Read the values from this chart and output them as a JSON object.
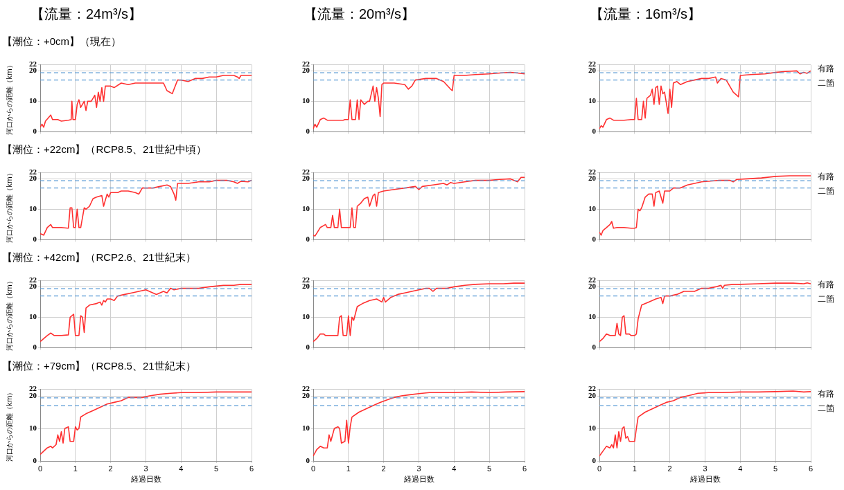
{
  "chart_data": [
    {
      "type": "line",
      "title": "【流量：24m³/s】",
      "subtitle": "【潮位：+0cm】（現在）",
      "ylabel": "河口からの距離（km）",
      "xlim": [
        0,
        6
      ],
      "xticks": [
        0,
        1,
        2,
        3,
        4,
        5,
        6
      ],
      "ylim": [
        0,
        22
      ],
      "yticks": [
        0,
        10,
        20,
        22
      ],
      "grid": true,
      "tick_labels": "y",
      "ref_lines": [
        {
          "axis": "y",
          "value": 19.4,
          "color": "#5b9bd5",
          "line_style": "dashed"
        },
        {
          "axis": "y",
          "value": 17,
          "color": "#5b9bd5",
          "line_style": "dashed"
        }
      ],
      "series": [
        {
          "color": "#ff3030",
          "x": [
            0,
            0.05,
            0.1,
            0.15,
            0.3,
            0.35,
            0.5,
            0.6,
            0.8,
            0.88,
            0.9,
            0.93,
            1.0,
            1.05,
            1.1,
            1.15,
            1.25,
            1.3,
            1.35,
            1.45,
            1.55,
            1.6,
            1.65,
            1.7,
            1.75,
            1.8,
            1.85,
            2.0,
            2.1,
            2.3,
            2.5,
            2.7,
            3.0,
            3.3,
            3.5,
            3.6,
            3.75,
            3.8,
            3.9,
            4.0,
            4.2,
            4.4,
            4.6,
            4.8,
            5.0,
            5.2,
            5.5,
            5.6,
            5.65,
            5.7,
            6.0
          ],
          "values": [
            1.5,
            2.5,
            1.5,
            3.5,
            5.5,
            4,
            4,
            3.5,
            3.8,
            4,
            10,
            4,
            4,
            9,
            10.5,
            8,
            10,
            7,
            10,
            10,
            12,
            8,
            13,
            10,
            14.5,
            10,
            15,
            15,
            14.5,
            16,
            15.5,
            16,
            16,
            16,
            16,
            13.5,
            12.5,
            14,
            17,
            17,
            16.5,
            17.5,
            17.5,
            18,
            18,
            18.5,
            18.5,
            18,
            17.5,
            18.5,
            18.5
          ]
        }
      ]
    },
    {
      "type": "line",
      "title": "【流量：20m³/s】",
      "xlim": [
        0,
        6
      ],
      "xticks": [
        0,
        1,
        2,
        3,
        4,
        5,
        6
      ],
      "ylim": [
        0,
        22
      ],
      "yticks": [
        0,
        10,
        20,
        22
      ],
      "grid": true,
      "tick_labels": "y",
      "ref_lines": [
        {
          "axis": "y",
          "value": 19.4,
          "color": "#5b9bd5",
          "line_style": "dashed"
        },
        {
          "axis": "y",
          "value": 17,
          "color": "#5b9bd5",
          "line_style": "dashed"
        }
      ],
      "series": [
        {
          "color": "#ff3030",
          "x": [
            0,
            0.05,
            0.1,
            0.2,
            0.3,
            0.4,
            0.7,
            0.85,
            0.9,
            1.0,
            1.05,
            1.1,
            1.2,
            1.25,
            1.3,
            1.35,
            1.45,
            1.55,
            1.6,
            1.7,
            1.75,
            1.8,
            1.85,
            1.9,
            1.95,
            2.0,
            2.3,
            2.6,
            2.7,
            2.8,
            2.9,
            3.2,
            3.5,
            3.7,
            3.9,
            3.95,
            4.0,
            4.3,
            4.6,
            5.0,
            5.3,
            5.6,
            5.8,
            6.0
          ],
          "values": [
            1,
            2.5,
            1.5,
            4,
            4.5,
            3.8,
            3.8,
            3.8,
            4,
            4,
            10.5,
            4,
            4,
            10.5,
            4,
            10.5,
            9,
            10,
            10,
            15,
            10,
            14.5,
            11,
            5,
            15.5,
            16,
            16,
            15.5,
            14,
            15,
            17,
            17.5,
            17.5,
            16.5,
            14,
            13.5,
            18.5,
            18.5,
            18.8,
            19,
            19.3,
            19.5,
            19.3,
            19
          ]
        }
      ]
    },
    {
      "type": "line",
      "title": "【流量：16m³/s】",
      "xlim": [
        0,
        6
      ],
      "xticks": [
        0,
        1,
        2,
        3,
        4,
        5,
        6
      ],
      "ylim": [
        0,
        22
      ],
      "yticks": [
        0,
        10,
        20,
        22
      ],
      "grid": true,
      "tick_labels": "y",
      "ref_lines": [
        {
          "axis": "y",
          "value": 19.4,
          "label": "有路",
          "color": "#5b9bd5",
          "line_style": "dashed"
        },
        {
          "axis": "y",
          "value": 17,
          "label": "二箇",
          "color": "#5b9bd5",
          "line_style": "dashed"
        }
      ],
      "series": [
        {
          "color": "#ff3030",
          "x": [
            0,
            0.05,
            0.1,
            0.2,
            0.3,
            0.4,
            0.7,
            0.9,
            1.0,
            1.05,
            1.1,
            1.2,
            1.25,
            1.3,
            1.35,
            1.45,
            1.5,
            1.55,
            1.6,
            1.65,
            1.7,
            1.75,
            1.8,
            1.85,
            1.95,
            2.0,
            2.05,
            2.1,
            2.2,
            2.3,
            2.5,
            2.7,
            2.9,
            3.1,
            3.3,
            3.35,
            3.45,
            3.6,
            3.8,
            3.95,
            4.0,
            4.3,
            4.7,
            5.0,
            5.3,
            5.6,
            5.7,
            5.8,
            5.9,
            6.0
          ],
          "values": [
            1,
            2,
            1.5,
            4,
            4.5,
            3.8,
            3.8,
            4,
            4,
            11,
            4,
            4,
            10,
            4.5,
            11,
            12,
            14,
            9,
            14.5,
            15,
            9,
            15,
            12.5,
            13,
            6,
            14,
            8,
            16,
            16.5,
            15.5,
            16.5,
            17,
            17.5,
            17.5,
            18,
            16,
            17.5,
            17,
            13,
            11.5,
            18.5,
            18.8,
            19,
            19.5,
            19.8,
            20,
            19,
            19.5,
            19.2,
            20
          ]
        }
      ]
    },
    {
      "type": "line",
      "subtitle": "【潮位：+22cm】（RCP8.5、21世紀中頃）",
      "ylabel": "河口からの距離（km）",
      "xlim": [
        0,
        6
      ],
      "xticks": [
        0,
        1,
        2,
        3,
        4,
        5,
        6
      ],
      "ylim": [
        0,
        22
      ],
      "yticks": [
        0,
        10,
        20,
        22
      ],
      "grid": true,
      "tick_labels": "y",
      "ref_lines": [
        {
          "axis": "y",
          "value": 19.4,
          "color": "#5b9bd5",
          "line_style": "dashed"
        },
        {
          "axis": "y",
          "value": 17,
          "color": "#5b9bd5",
          "line_style": "dashed"
        }
      ],
      "series": [
        {
          "color": "#ff3030",
          "x": [
            0,
            0.1,
            0.2,
            0.3,
            0.35,
            0.6,
            0.8,
            0.85,
            0.9,
            0.95,
            1.0,
            1.05,
            1.1,
            1.15,
            1.25,
            1.3,
            1.4,
            1.5,
            1.6,
            1.75,
            1.8,
            1.9,
            1.95,
            2.0,
            2.2,
            2.3,
            2.5,
            2.7,
            2.8,
            2.9,
            3.2,
            3.4,
            3.6,
            3.7,
            3.8,
            3.85,
            3.9,
            4.2,
            4.5,
            4.8,
            5.0,
            5.3,
            5.5,
            5.6,
            5.7,
            5.9,
            6.0
          ],
          "values": [
            2,
            1.5,
            4,
            5,
            4,
            4,
            3.8,
            10.5,
            10.5,
            4,
            4,
            10,
            4,
            4,
            10.5,
            10,
            11,
            13.5,
            14,
            14.5,
            11,
            15,
            14,
            15.5,
            15.5,
            16,
            16,
            15.5,
            15,
            17,
            17,
            17.5,
            18,
            17.5,
            15,
            13,
            18.5,
            18.5,
            19,
            19,
            19.5,
            19.5,
            19,
            18.5,
            19.2,
            19,
            19.5
          ]
        }
      ]
    },
    {
      "type": "line",
      "xlim": [
        0,
        6
      ],
      "xticks": [
        0,
        1,
        2,
        3,
        4,
        5,
        6
      ],
      "ylim": [
        0,
        22
      ],
      "yticks": [
        0,
        10,
        20,
        22
      ],
      "grid": true,
      "tick_labels": "y",
      "ref_lines": [
        {
          "axis": "y",
          "value": 19.4,
          "color": "#5b9bd5",
          "line_style": "dashed"
        },
        {
          "axis": "y",
          "value": 17,
          "color": "#5b9bd5",
          "line_style": "dashed"
        }
      ],
      "series": [
        {
          "color": "#ff3030",
          "x": [
            0,
            0.05,
            0.2,
            0.35,
            0.4,
            0.5,
            0.55,
            0.6,
            0.7,
            0.75,
            0.8,
            0.9,
            1.05,
            1.1,
            1.15,
            1.2,
            1.25,
            1.35,
            1.45,
            1.55,
            1.6,
            1.7,
            1.75,
            1.8,
            1.85,
            2.0,
            2.3,
            2.6,
            2.9,
            3.0,
            3.1,
            3.4,
            3.7,
            3.8,
            3.9,
            4.0,
            4.3,
            4.6,
            5.0,
            5.3,
            5.6,
            5.8,
            5.9,
            6.0
          ],
          "values": [
            1.5,
            1.2,
            4,
            5,
            4,
            4,
            8,
            4,
            4,
            10,
            4,
            4,
            4,
            10.5,
            4,
            4,
            11,
            12,
            13.5,
            14,
            11,
            14.5,
            15,
            11,
            15.5,
            16,
            16.5,
            17,
            17.5,
            16.5,
            17.5,
            18,
            18.5,
            18,
            18.8,
            18.5,
            19,
            19.5,
            19.5,
            19.8,
            20,
            19,
            20.5,
            20.5
          ]
        }
      ]
    },
    {
      "type": "line",
      "xlim": [
        0,
        6
      ],
      "xticks": [
        0,
        1,
        2,
        3,
        4,
        5,
        6
      ],
      "ylim": [
        0,
        22
      ],
      "yticks": [
        0,
        10,
        20,
        22
      ],
      "grid": true,
      "tick_labels": "y",
      "ref_lines": [
        {
          "axis": "y",
          "value": 19.4,
          "label": "有路",
          "color": "#5b9bd5",
          "line_style": "dashed"
        },
        {
          "axis": "y",
          "value": 17,
          "label": "二箇",
          "color": "#5b9bd5",
          "line_style": "dashed"
        }
      ],
      "series": [
        {
          "color": "#ff3030",
          "x": [
            0,
            0.05,
            0.1,
            0.2,
            0.3,
            0.35,
            0.4,
            0.5,
            0.7,
            0.9,
            1.0,
            1.05,
            1.1,
            1.15,
            1.2,
            1.3,
            1.35,
            1.4,
            1.5,
            1.55,
            1.6,
            1.7,
            1.8,
            1.85,
            2.0,
            2.1,
            2.3,
            2.5,
            2.7,
            2.9,
            3.2,
            3.4,
            3.7,
            3.8,
            3.9,
            4.2,
            4.6,
            5.0,
            5.4,
            5.7,
            6.0
          ],
          "values": [
            2.5,
            1.5,
            3,
            4,
            5,
            6,
            3.8,
            4,
            4,
            3.8,
            3.8,
            4,
            10,
            9.5,
            10.5,
            14,
            14.5,
            15,
            15,
            11,
            15.5,
            16,
            12,
            16,
            16,
            17,
            17,
            18,
            18.5,
            19,
            19.3,
            19.5,
            19.5,
            19,
            19.8,
            20,
            20.3,
            20.8,
            21,
            21,
            21
          ]
        }
      ]
    },
    {
      "type": "line",
      "subtitle": "【潮位：+42cm】（RCP2.6、21世紀末）",
      "ylabel": "河口からの距離（km）",
      "xlim": [
        0,
        6
      ],
      "xticks": [
        0,
        1,
        2,
        3,
        4,
        5,
        6
      ],
      "ylim": [
        0,
        22
      ],
      "yticks": [
        0,
        10,
        20,
        22
      ],
      "grid": true,
      "tick_labels": "y",
      "ref_lines": [
        {
          "axis": "y",
          "value": 19.4,
          "color": "#5b9bd5",
          "line_style": "dashed"
        },
        {
          "axis": "y",
          "value": 17,
          "color": "#5b9bd5",
          "line_style": "dashed"
        }
      ],
      "series": [
        {
          "color": "#ff3030",
          "x": [
            0,
            0.2,
            0.3,
            0.4,
            0.6,
            0.8,
            0.85,
            0.95,
            1.0,
            1.1,
            1.15,
            1.2,
            1.25,
            1.3,
            1.4,
            1.6,
            1.7,
            1.75,
            1.8,
            1.85,
            1.9,
            2.0,
            2.1,
            2.2,
            2.4,
            2.6,
            2.8,
            3.0,
            3.1,
            3.3,
            3.4,
            3.5,
            3.6,
            3.7,
            3.8,
            4.0,
            4.3,
            4.5,
            4.8,
            5.2,
            5.5,
            5.7,
            6.0
          ],
          "values": [
            2,
            4,
            4.8,
            4,
            4,
            4.2,
            10,
            11,
            4,
            4,
            10.5,
            10,
            5,
            13,
            14,
            14.5,
            15,
            14,
            15.5,
            15,
            16,
            16,
            15.5,
            17,
            17.5,
            18,
            18.5,
            19,
            18.5,
            17.5,
            18,
            18.5,
            18,
            19.5,
            19,
            19.5,
            19.5,
            19.5,
            20,
            20.5,
            20.5,
            20.8,
            20.8
          ]
        }
      ]
    },
    {
      "type": "line",
      "xlim": [
        0,
        6
      ],
      "xticks": [
        0,
        1,
        2,
        3,
        4,
        5,
        6
      ],
      "ylim": [
        0,
        22
      ],
      "yticks": [
        0,
        10,
        20,
        22
      ],
      "grid": true,
      "tick_labels": "y",
      "ref_lines": [
        {
          "axis": "y",
          "value": 19.4,
          "color": "#5b9bd5",
          "line_style": "dashed"
        },
        {
          "axis": "y",
          "value": 17,
          "color": "#5b9bd5",
          "line_style": "dashed"
        }
      ],
      "series": [
        {
          "color": "#ff3030",
          "x": [
            0,
            0.1,
            0.2,
            0.3,
            0.35,
            0.6,
            0.7,
            0.75,
            0.8,
            0.85,
            0.95,
            1.0,
            1.05,
            1.1,
            1.15,
            1.25,
            1.4,
            1.6,
            1.8,
            1.95,
            2.0,
            2.05,
            2.2,
            2.4,
            2.6,
            2.8,
            3.0,
            3.2,
            3.3,
            3.4,
            3.5,
            3.7,
            3.8,
            4.0,
            4.3,
            4.6,
            5.0,
            5.4,
            5.7,
            6.0
          ],
          "values": [
            2,
            3,
            4.5,
            4.5,
            4,
            4,
            4,
            10,
            10.5,
            4,
            4,
            10.5,
            4,
            10,
            9,
            13.5,
            14.5,
            15.5,
            16,
            15,
            16.5,
            15,
            16.5,
            17.5,
            18,
            18.5,
            19,
            19.5,
            19.5,
            18.5,
            19.5,
            19.5,
            19.5,
            20,
            20.5,
            20.8,
            21,
            21,
            21.2,
            21.2
          ]
        }
      ]
    },
    {
      "type": "line",
      "xlim": [
        0,
        6
      ],
      "xticks": [
        0,
        1,
        2,
        3,
        4,
        5,
        6
      ],
      "ylim": [
        0,
        22
      ],
      "yticks": [
        0,
        10,
        20,
        22
      ],
      "grid": true,
      "tick_labels": "y",
      "ref_lines": [
        {
          "axis": "y",
          "value": 19.4,
          "label": "有路",
          "color": "#5b9bd5",
          "line_style": "dashed"
        },
        {
          "axis": "y",
          "value": 17,
          "label": "二箇",
          "color": "#5b9bd5",
          "line_style": "dashed"
        }
      ],
      "series": [
        {
          "color": "#ff3030",
          "x": [
            0,
            0.1,
            0.2,
            0.3,
            0.45,
            0.5,
            0.55,
            0.6,
            0.65,
            0.7,
            0.75,
            0.85,
            0.9,
            1.0,
            1.05,
            1.1,
            1.2,
            1.4,
            1.6,
            1.75,
            1.8,
            1.85,
            2.0,
            2.2,
            2.4,
            2.7,
            2.9,
            3.1,
            3.3,
            3.45,
            3.5,
            3.55,
            3.8,
            4.0,
            4.5,
            5.0,
            5.5,
            5.8,
            5.9,
            6.0
          ],
          "values": [
            2,
            3,
            4.5,
            4,
            4,
            8,
            4.5,
            4,
            10,
            10.5,
            4.5,
            4.5,
            4,
            4,
            4.5,
            9.5,
            14,
            15,
            16,
            16.5,
            14.5,
            17,
            17,
            17.5,
            18.5,
            18.5,
            19.5,
            19.5,
            20,
            20.5,
            19.5,
            20.5,
            20.8,
            20.8,
            21,
            21.2,
            21.2,
            21,
            21.3,
            21
          ]
        }
      ]
    },
    {
      "type": "line",
      "subtitle": "【潮位：+79cm】（RCP8.5、21世紀末）",
      "ylabel": "河口からの距離（km）",
      "xlabel": "経過日数",
      "xlim": [
        0,
        6
      ],
      "xticks": [
        0,
        1,
        2,
        3,
        4,
        5,
        6
      ],
      "ylim": [
        0,
        22
      ],
      "yticks": [
        0,
        10,
        20,
        22
      ],
      "grid": true,
      "ref_lines": [
        {
          "axis": "y",
          "value": 19.4,
          "color": "#5b9bd5",
          "line_style": "dashed"
        },
        {
          "axis": "y",
          "value": 17,
          "color": "#5b9bd5",
          "line_style": "dashed"
        }
      ],
      "series": [
        {
          "color": "#ff3030",
          "x": [
            0,
            0.1,
            0.2,
            0.3,
            0.35,
            0.45,
            0.5,
            0.55,
            0.6,
            0.65,
            0.7,
            0.8,
            0.85,
            0.9,
            0.95,
            1.0,
            1.05,
            1.1,
            1.15,
            1.3,
            1.5,
            1.7,
            1.9,
            2.1,
            2.3,
            2.5,
            2.7,
            2.9,
            3.1,
            3.4,
            3.7,
            4.0,
            4.5,
            5.0,
            6.0
          ],
          "values": [
            2,
            3,
            4,
            4.5,
            4,
            5,
            8,
            6,
            9,
            5.5,
            10,
            10.5,
            6,
            6,
            6,
            10.5,
            9.5,
            10,
            13.5,
            14.5,
            15.5,
            16.5,
            17.5,
            18,
            18.5,
            19.5,
            19.5,
            19.5,
            20,
            20.5,
            20.8,
            21,
            21,
            21.2,
            21.2
          ]
        }
      ]
    },
    {
      "type": "line",
      "xlabel": "経過日数",
      "xlim": [
        0,
        6
      ],
      "xticks": [
        0,
        1,
        2,
        3,
        4,
        5,
        6
      ],
      "ylim": [
        0,
        22
      ],
      "yticks": [
        0,
        10,
        20,
        22
      ],
      "grid": true,
      "ref_lines": [
        {
          "axis": "y",
          "value": 19.4,
          "color": "#5b9bd5",
          "line_style": "dashed"
        },
        {
          "axis": "y",
          "value": 17,
          "color": "#5b9bd5",
          "line_style": "dashed"
        }
      ],
      "series": [
        {
          "color": "#ff3030",
          "x": [
            0,
            0.1,
            0.2,
            0.3,
            0.4,
            0.45,
            0.5,
            0.6,
            0.7,
            0.75,
            0.8,
            0.9,
            0.95,
            1.0,
            1.05,
            1.1,
            1.3,
            1.5,
            1.7,
            1.9,
            2.1,
            2.3,
            2.5,
            2.7,
            3.0,
            3.3,
            3.7,
            4.0,
            4.5,
            5.0,
            5.5,
            6.0
          ],
          "values": [
            1.5,
            3.5,
            4.5,
            4,
            4,
            8,
            6,
            10,
            10.5,
            10,
            5.5,
            6,
            12.5,
            5.5,
            10.5,
            13.5,
            15,
            16,
            17,
            18,
            18.8,
            19.5,
            20,
            20.3,
            20.7,
            21,
            21,
            21,
            21.2,
            21,
            21.2,
            21.3
          ]
        }
      ]
    },
    {
      "type": "line",
      "xlabel": "経過日数",
      "xlim": [
        0,
        6
      ],
      "xticks": [
        0,
        1,
        2,
        3,
        4,
        5,
        6
      ],
      "ylim": [
        0,
        22
      ],
      "yticks": [
        0,
        10,
        20,
        22
      ],
      "grid": true,
      "ref_lines": [
        {
          "axis": "y",
          "value": 19.4,
          "label": "有路",
          "color": "#5b9bd5",
          "line_style": "dashed"
        },
        {
          "axis": "y",
          "value": 17,
          "label": "二箇",
          "color": "#5b9bd5",
          "line_style": "dashed"
        }
      ],
      "series": [
        {
          "color": "#ff3030",
          "x": [
            0,
            0.1,
            0.2,
            0.3,
            0.35,
            0.4,
            0.45,
            0.5,
            0.55,
            0.6,
            0.65,
            0.7,
            0.75,
            0.8,
            0.85,
            0.95,
            1.0,
            1.05,
            1.1,
            1.3,
            1.5,
            1.7,
            1.9,
            2.1,
            2.3,
            2.5,
            2.8,
            3.1,
            3.5,
            4.0,
            4.5,
            5.0,
            5.5,
            5.8,
            6.0
          ],
          "values": [
            1.5,
            3,
            4.5,
            4,
            5,
            4,
            8,
            4,
            9,
            6,
            10,
            10.5,
            7,
            7.5,
            6,
            6,
            6,
            10,
            13.5,
            15,
            16,
            17,
            18,
            18.5,
            19.5,
            20,
            20.8,
            21,
            21,
            21.2,
            21.2,
            21.3,
            21.5,
            21.2,
            21.3
          ]
        }
      ]
    }
  ]
}
